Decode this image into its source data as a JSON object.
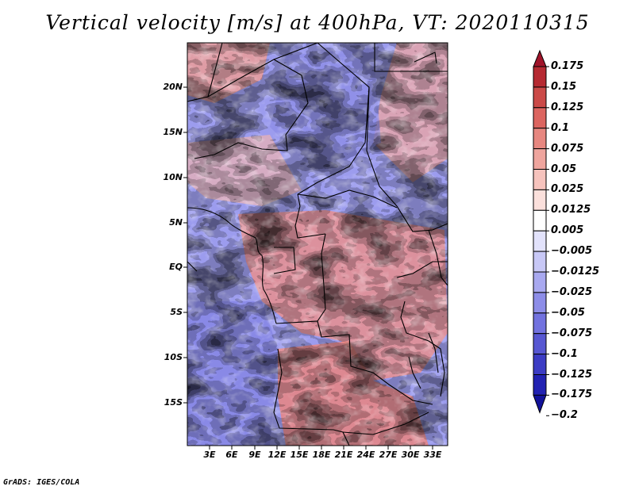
{
  "title": "Vertical velocity [m/s] at 400hPa, VT: 2020110315",
  "credit": "GrADS: IGES/COLA",
  "map": {
    "lat_labels": [
      "20N",
      "15N",
      "10N",
      "5N",
      "EQ",
      "5S",
      "10S",
      "15S"
    ],
    "lon_labels": [
      "3E",
      "6E",
      "9E",
      "12E",
      "15E",
      "18E",
      "21E",
      "24E",
      "27E",
      "30E",
      "33E"
    ]
  },
  "colorbar": {
    "labels": [
      "0.175",
      "0.15",
      "0.125",
      "0.1",
      "0.075",
      "0.05",
      "0.025",
      "0.0125",
      "0.005",
      "−0.005",
      "−0.0125",
      "−0.025",
      "−0.05",
      "−0.075",
      "−0.1",
      "−0.125",
      "−0.175",
      "−0.2"
    ],
    "colors": [
      "#a0142a",
      "#b62a32",
      "#cb4a48",
      "#dc6560",
      "#e78780",
      "#efa59e",
      "#f6c3bd",
      "#fbe0dc",
      "#ffffff",
      "#e2e2fb",
      "#c8c8f6",
      "#a9a9f0",
      "#8d8de8",
      "#7272df",
      "#5757d2",
      "#3c3cc4",
      "#2222b2",
      "#12129a"
    ]
  }
}
